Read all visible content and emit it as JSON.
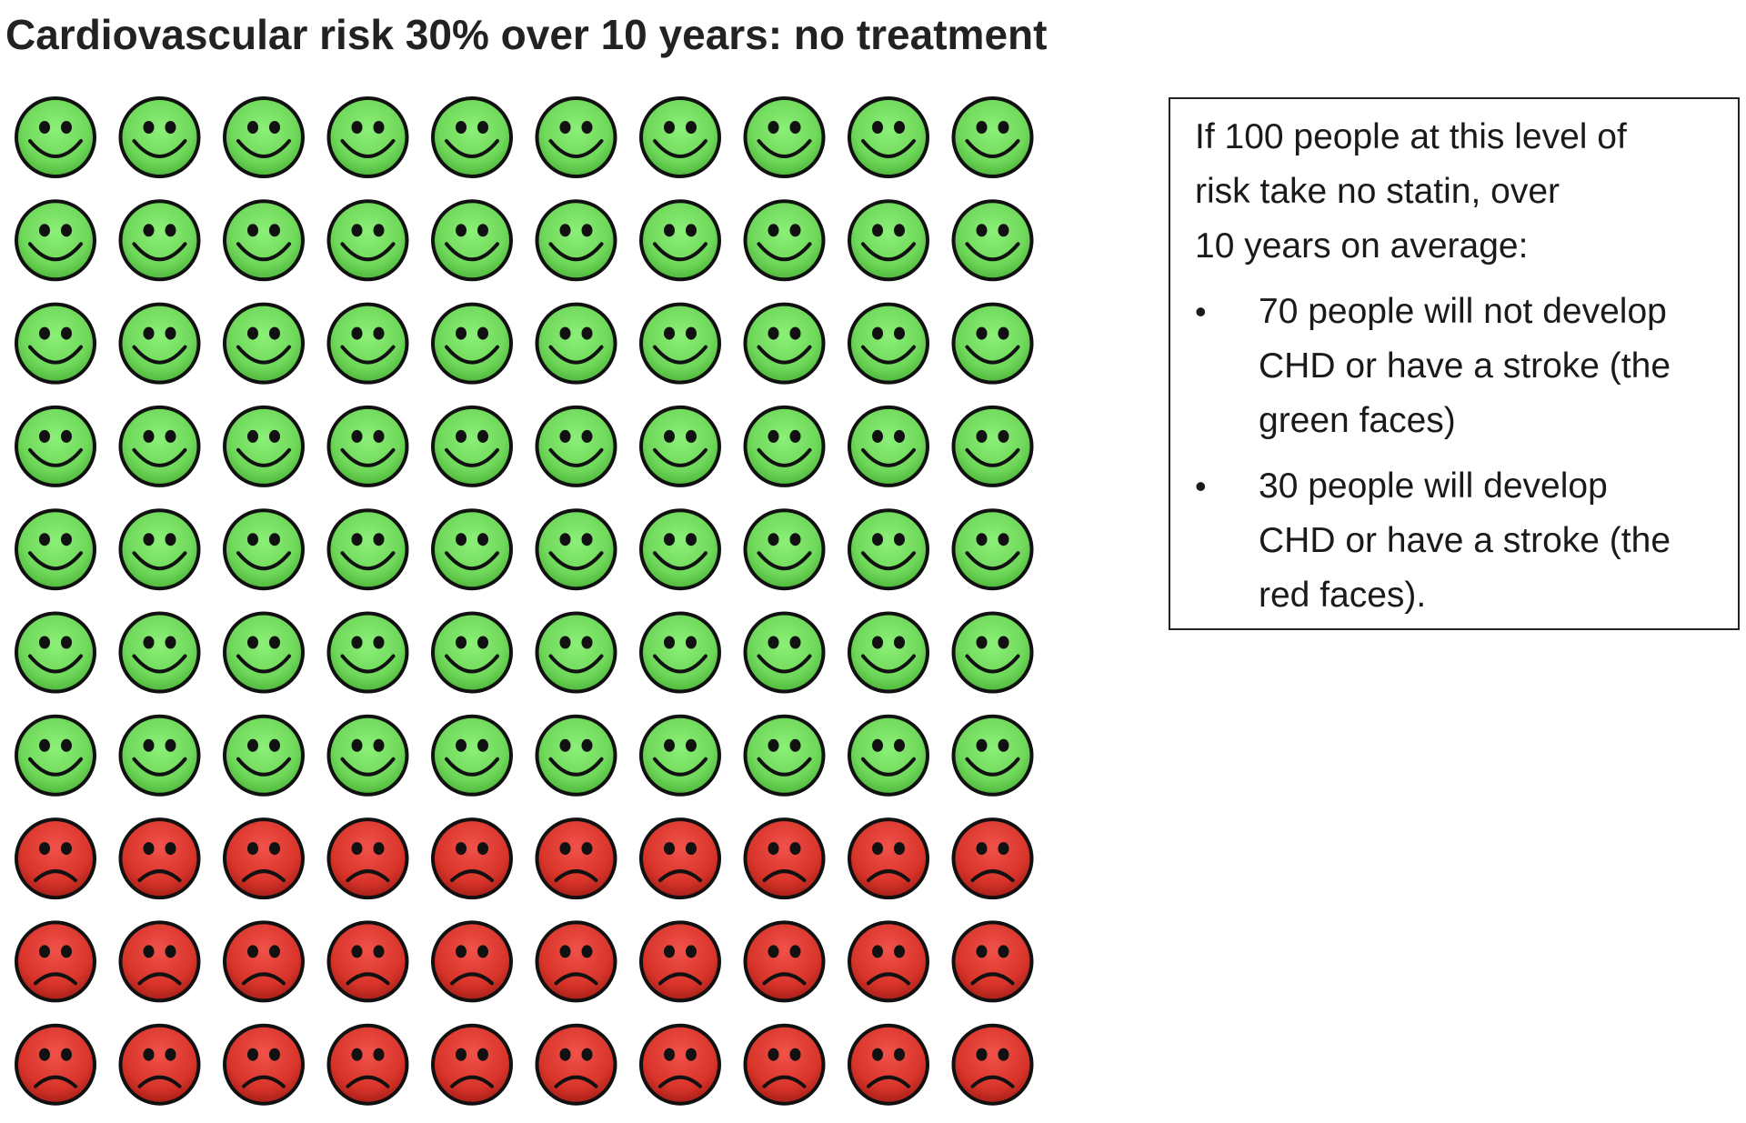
{
  "title": {
    "main": "Cardiovascular risk 30% over 10 years:",
    "suffix": "no treatment"
  },
  "grid": {
    "rows": 10,
    "columns": 10,
    "total_people": 100,
    "no_event_count": 70,
    "event_count": 30,
    "no_event_icon": "smiley-face-icon",
    "event_icon": "sad-face-icon",
    "no_event_color": "#6fd85a",
    "event_color": "#d8342a"
  },
  "info_box": {
    "intro_lines": [
      "If 100 people at this level of",
      "risk take no statin, over",
      "10 years on average:"
    ],
    "bullet_symbol": "•",
    "items": [
      {
        "lines": [
          "70 people will not develop",
          "CHD or have a stroke (the",
          "green faces)"
        ]
      },
      {
        "lines": [
          "30 people will develop",
          "CHD or have a stroke (the",
          "red faces)."
        ]
      }
    ]
  }
}
